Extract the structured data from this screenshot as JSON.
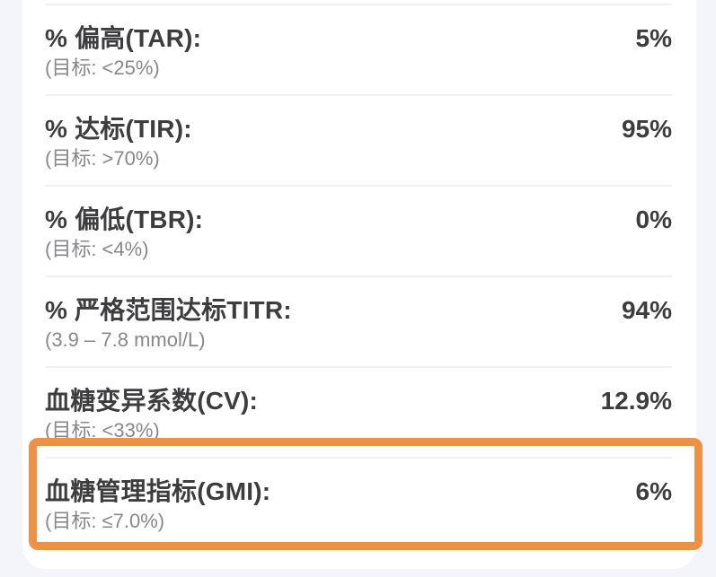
{
  "page": {
    "background_color": "#f4f5fb",
    "card_color": "#ffffff",
    "divider_color": "#f0f0f1",
    "label_color": "#3d3d40",
    "sublabel_color": "#87878c",
    "highlight_border_color": "#ec9247"
  },
  "metrics": {
    "rows": [
      {
        "id": "tar",
        "label": "% 偏高(TAR):",
        "sublabel": "(目标: <25%)",
        "value": "5%",
        "highlighted": false
      },
      {
        "id": "tir",
        "label": "% 达标(TIR):",
        "sublabel": "(目标: >70%)",
        "value": "95%",
        "highlighted": false
      },
      {
        "id": "tbr",
        "label": "% 偏低(TBR):",
        "sublabel": "(目标: <4%)",
        "value": "0%",
        "highlighted": false
      },
      {
        "id": "titr",
        "label": "% 严格范围达标TITR:",
        "sublabel": "(3.9 – 7.8 mmol/L)",
        "value": "94%",
        "highlighted": false
      },
      {
        "id": "cv",
        "label": "血糖变异系数(CV):",
        "sublabel": "(目标: <33%)",
        "value": "12.9%",
        "highlighted": false
      },
      {
        "id": "gmi",
        "label": "血糖管理指标(GMI):",
        "sublabel": "(目标: ≤7.0%)",
        "value": "6%",
        "highlighted": true
      }
    ],
    "highlight": {
      "target_row": "gmi"
    }
  }
}
